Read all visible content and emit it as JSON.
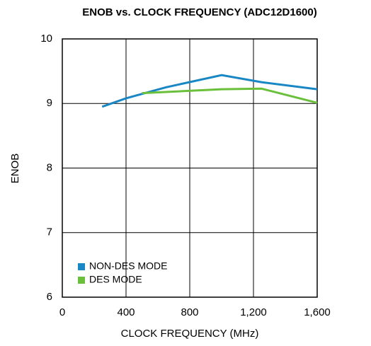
{
  "chart_data": {
    "type": "line",
    "title": "ENOB vs. CLOCK FREQUENCY (ADC12D1600)",
    "xlabel": "CLOCK FREQUENCY (MHz)",
    "ylabel": "ENOB",
    "series": [
      {
        "name": "NON-DES MODE",
        "color": "#1a87c5",
        "x": [
          250,
          400,
          650,
          1000,
          1250,
          1600
        ],
        "values": [
          8.95,
          9.08,
          9.25,
          9.44,
          9.33,
          9.22
        ]
      },
      {
        "name": "DES MODE",
        "color": "#6abf3b",
        "x": [
          500,
          1000,
          1250,
          1600
        ],
        "values": [
          9.16,
          9.22,
          9.23,
          9.01
        ]
      }
    ],
    "xlim": [
      0,
      1600
    ],
    "xticks": [
      0,
      400,
      800,
      {
        "value": 1200,
        "label": "1,200"
      },
      {
        "value": 1600,
        "label": "1,600"
      }
    ],
    "ylim": [
      6,
      10
    ],
    "yticks": [
      6,
      7,
      8,
      9,
      10
    ],
    "grid": true,
    "legend": "lower left"
  }
}
